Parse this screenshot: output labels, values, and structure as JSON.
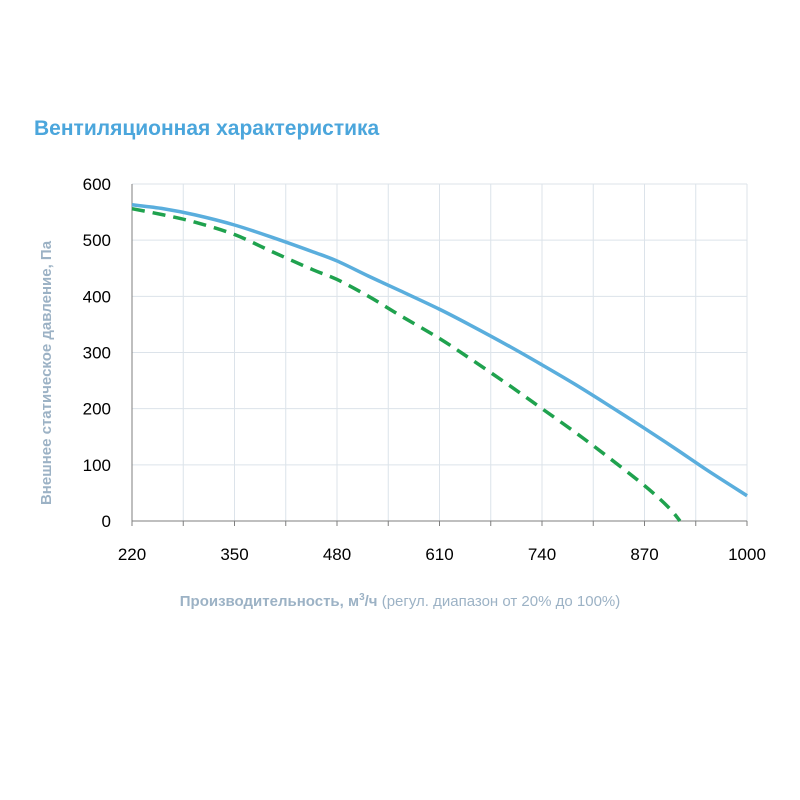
{
  "colors": {
    "title": "#4BA6DC",
    "series_solid": "#5AAEDD",
    "series_dashed": "#1FA24E",
    "grid": "#DCE3EA",
    "axis_label": "#9CB2C5"
  },
  "chart_data": {
    "type": "line",
    "title": "Вентиляционная характеристика",
    "ylabel": "Внешнее статическое давление, Па",
    "xlabel": {
      "bold": "Производительность, м",
      "sup": "3",
      "bold_after": "/ч",
      "normal": " (регул. диапазон от 20% до 100%)"
    },
    "xlim": [
      220,
      1000
    ],
    "ylim": [
      0,
      600
    ],
    "x_ticks": [
      220,
      350,
      480,
      610,
      740,
      870,
      1000
    ],
    "y_ticks": [
      0,
      100,
      200,
      300,
      400,
      500,
      600
    ],
    "grid": "vertical and horizontal",
    "series": [
      {
        "style": "solid",
        "color": "#5AAEDD",
        "x": [
          220,
          260,
          300,
          350,
          400,
          450,
          480,
          520,
          560,
          610,
          650,
          700,
          740,
          780,
          820,
          870,
          910,
          950,
          1000
        ],
        "y": [
          563,
          556,
          545,
          527,
          504,
          479,
          463,
          436,
          410,
          377,
          348,
          310,
          278,
          245,
          210,
          165,
          128,
          90,
          45
        ]
      },
      {
        "style": "dashed",
        "color": "#1FA24E",
        "x": [
          220,
          260,
          300,
          350,
          400,
          450,
          480,
          520,
          560,
          610,
          650,
          700,
          740,
          780,
          820,
          870,
          900,
          915
        ],
        "y": [
          556,
          545,
          532,
          510,
          478,
          447,
          430,
          400,
          366,
          325,
          288,
          240,
          200,
          160,
          118,
          63,
          25,
          0
        ]
      }
    ]
  }
}
